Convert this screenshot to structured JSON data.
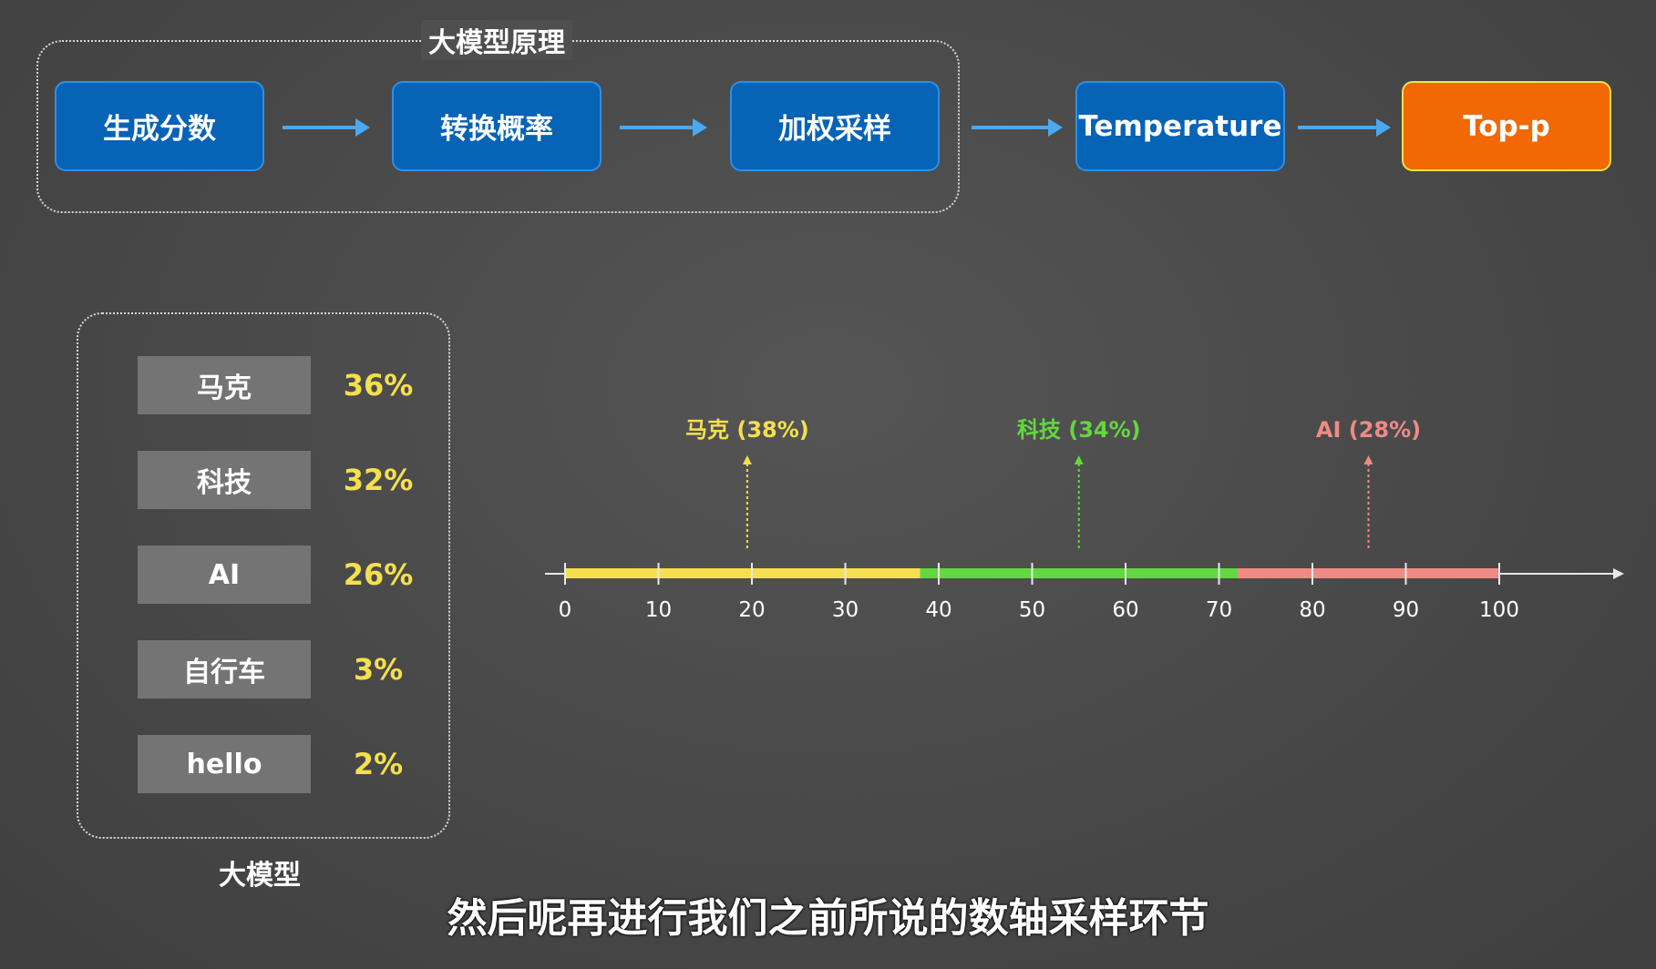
{
  "pipeline": {
    "title": "大模型原理",
    "steps": [
      "生成分数",
      "转换概率",
      "加权采样",
      "Temperature",
      "Top-p"
    ],
    "active_index": 4
  },
  "model": {
    "label": "大模型",
    "tokens": [
      {
        "token": "马克",
        "prob": "36%"
      },
      {
        "token": "科技",
        "prob": "32%"
      },
      {
        "token": "AI",
        "prob": "26%"
      },
      {
        "token": "自行车",
        "prob": "3%"
      },
      {
        "token": "hello",
        "prob": "2%"
      }
    ]
  },
  "chart_data": {
    "type": "bar",
    "title": "",
    "xlabel": "",
    "xlim": [
      0,
      100
    ],
    "ticks": [
      0,
      10,
      20,
      30,
      40,
      50,
      60,
      70,
      80,
      90,
      100
    ],
    "segments": [
      {
        "label": "马克 (38%)",
        "start": 0,
        "end": 38,
        "marker": 19.5,
        "color": "#f4e04d"
      },
      {
        "label": "科技 (34%)",
        "start": 38,
        "end": 72,
        "marker": 55,
        "color": "#62d83f"
      },
      {
        "label": "AI (28%)",
        "start": 72,
        "end": 100,
        "marker": 86,
        "color": "#f08a84"
      }
    ]
  },
  "subtitle": "然后呢再进行我们之前所说的数轴采样环节",
  "colors": {
    "step": "#0763b6",
    "active_step": "#f16804",
    "arrow": "#4aa9ee",
    "prob": "#f4e04d"
  }
}
